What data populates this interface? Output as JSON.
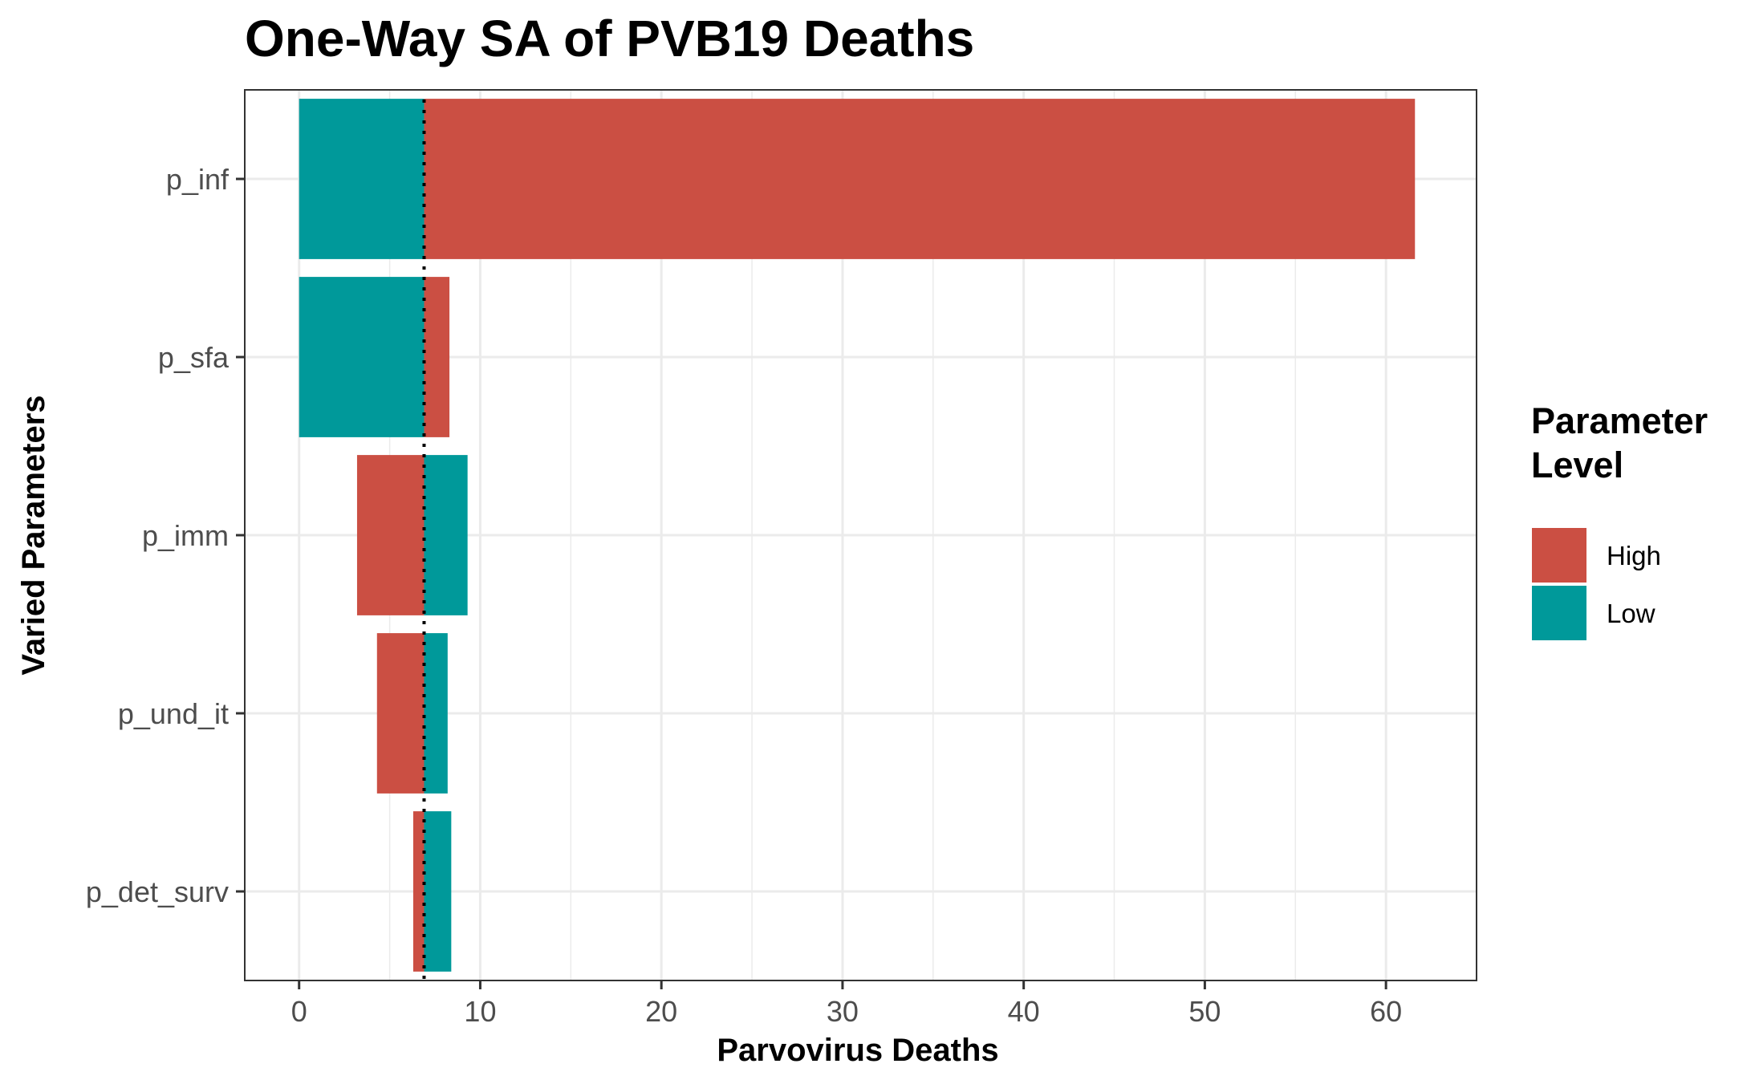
{
  "chart_data": {
    "type": "bar",
    "orientation": "horizontal",
    "stacking": "tornado",
    "title": "One-Way SA of PVB19 Deaths",
    "xlabel": "Parvovirus Deaths",
    "ylabel": "Varied Parameters",
    "xlim": [
      -3,
      65
    ],
    "x_ticks": [
      0,
      10,
      20,
      30,
      40,
      50,
      60
    ],
    "x_tick_labels": [
      "0",
      "10",
      "20",
      "30",
      "40",
      "50",
      "60"
    ],
    "baseline": 6.9,
    "baseline_style": "dotted",
    "categories": [
      "p_inf",
      "p_sfa",
      "p_imm",
      "p_und_it",
      "p_det_surv"
    ],
    "series": [
      {
        "name": "High",
        "color": "#cb4f43",
        "values": [
          61.6,
          8.3,
          3.2,
          4.3,
          6.3
        ]
      },
      {
        "name": "Low",
        "color": "#00999a",
        "values": [
          0.0,
          0.0,
          9.3,
          8.2,
          8.4
        ]
      }
    ],
    "legend": {
      "title_lines": [
        "Parameter",
        "Level"
      ],
      "placement": "right",
      "entries": [
        "High",
        "Low"
      ]
    },
    "grid": true,
    "theme": "bw"
  }
}
